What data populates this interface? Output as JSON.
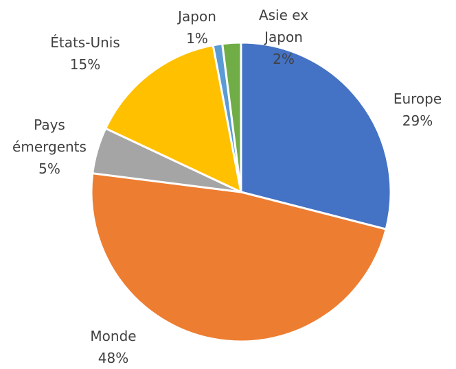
{
  "chart_data": {
    "type": "pie",
    "categories": [
      "Europe",
      "Monde",
      "Pays émergents",
      "États-Unis",
      "Japon",
      "Asie ex Japon"
    ],
    "values": [
      29,
      48,
      5,
      15,
      1,
      2
    ],
    "value_labels": [
      "29%",
      "48%",
      "5%",
      "15%",
      "1%",
      "2%"
    ],
    "colors": [
      "#4472c4",
      "#ed7d31",
      "#a5a5a5",
      "#ffc000",
      "#5b9bd5",
      "#70ad47"
    ]
  }
}
